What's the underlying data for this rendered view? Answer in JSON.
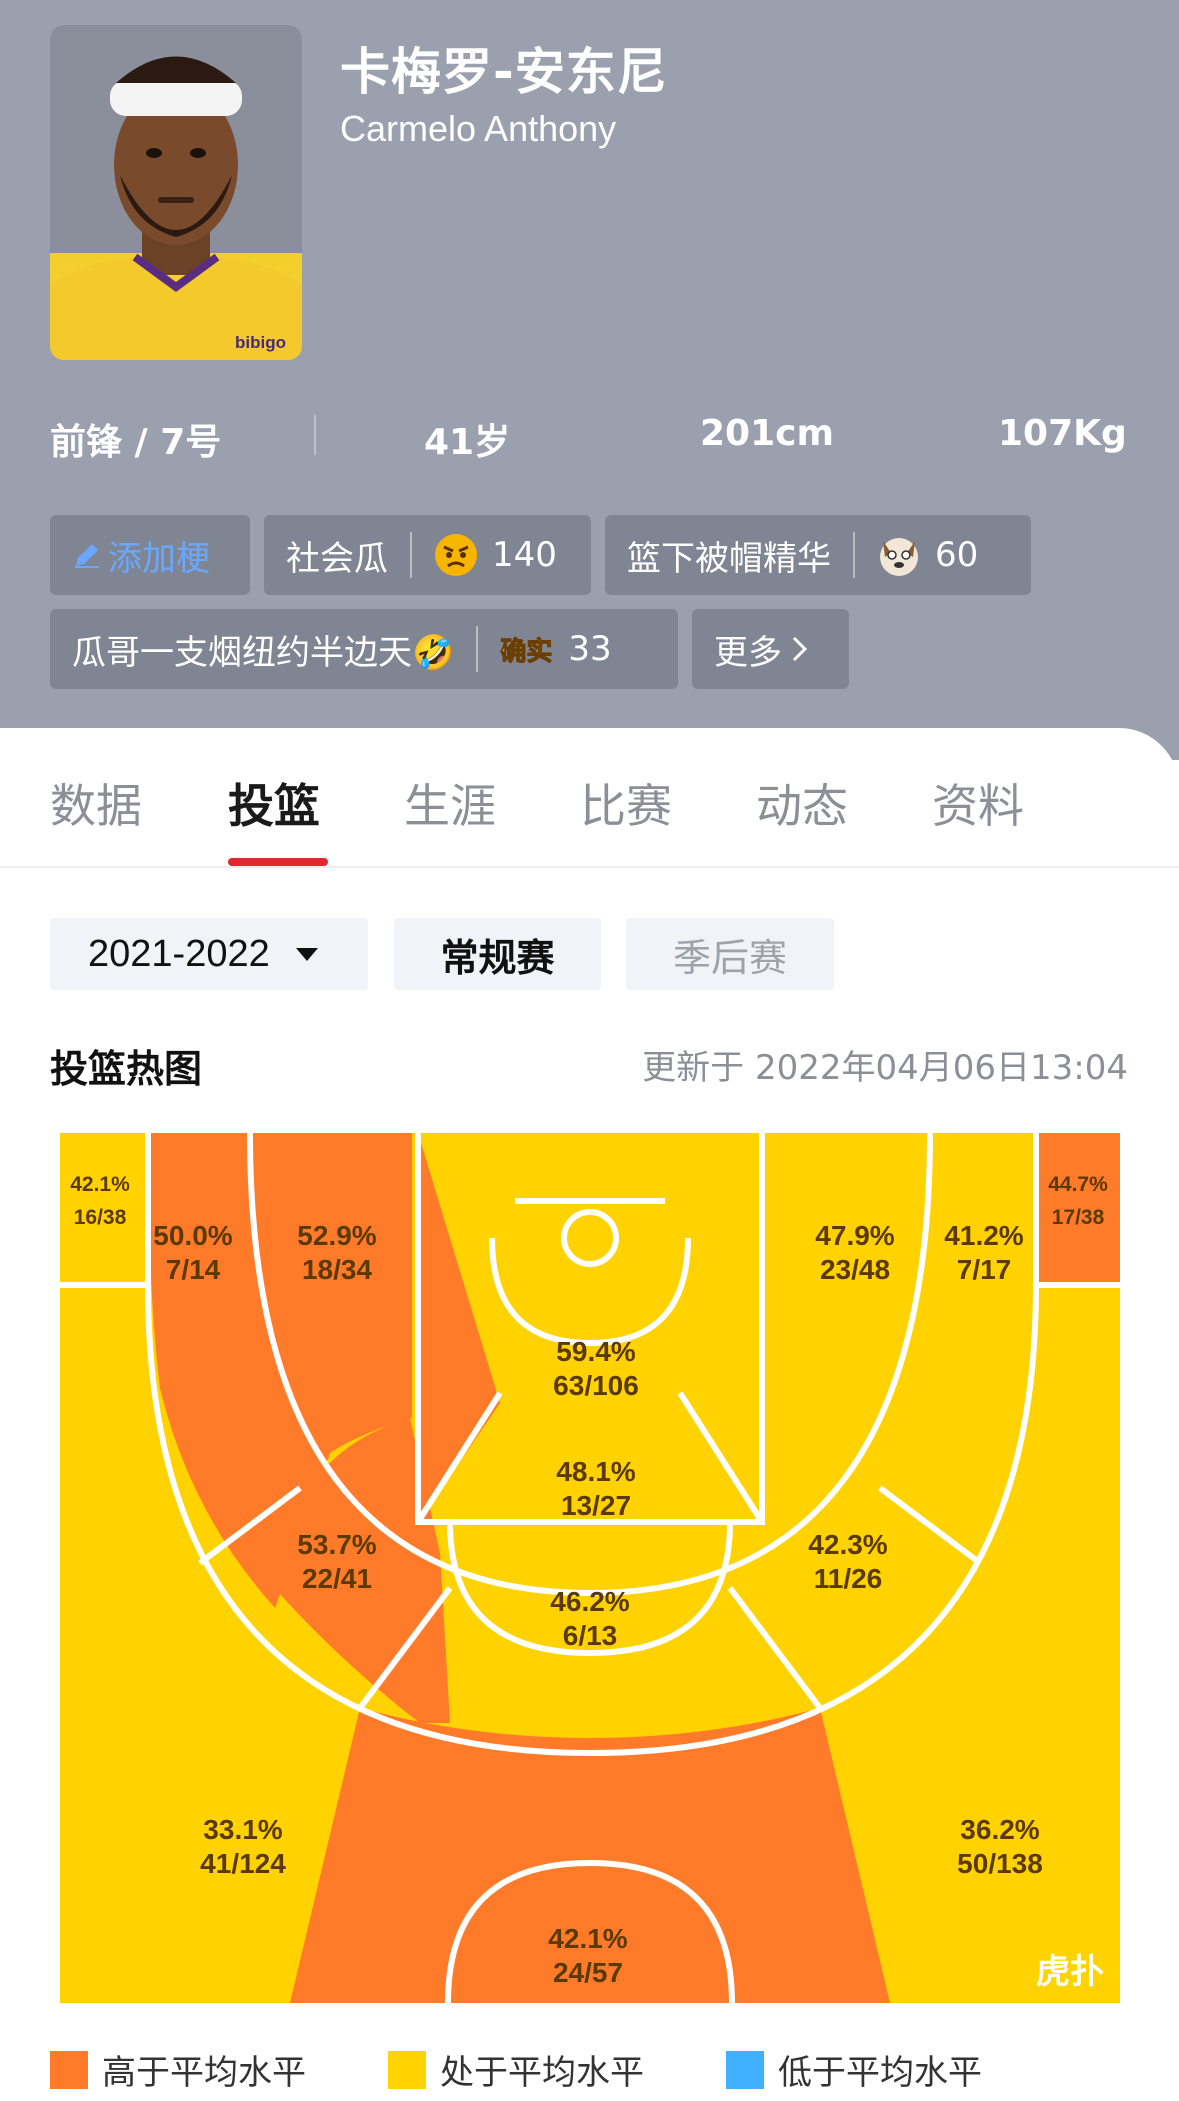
{
  "player": {
    "name_cn": "卡梅罗-安东尼",
    "name_en": "Carmelo Anthony",
    "jersey_text": "bibigo",
    "position_number": "前锋 / 7号",
    "age": "41岁",
    "height": "201cm",
    "weight": "107Kg"
  },
  "tags": {
    "add_label": "添加梗",
    "items": [
      {
        "label": "社会瓜",
        "count": "140",
        "icon": "angry-face-icon"
      },
      {
        "label": "篮下被帽精华",
        "count": "60",
        "icon": "dog-face-icon"
      },
      {
        "label": "瓜哥一支烟纽约半边天🤣",
        "badge": "确实",
        "count": "33"
      }
    ],
    "more_label": "更多"
  },
  "tabs": [
    {
      "label": "数据",
      "active": false
    },
    {
      "label": "投篮",
      "active": true
    },
    {
      "label": "生涯",
      "active": false
    },
    {
      "label": "比赛",
      "active": false
    },
    {
      "label": "动态",
      "active": false
    },
    {
      "label": "资料",
      "active": false
    }
  ],
  "filters": {
    "season": "2021-2022",
    "regular_label": "常规赛",
    "playoff_label": "季后赛"
  },
  "heatmap": {
    "title": "投篮热图",
    "updated": "更新于 2022年04月06日13:04",
    "watermark": "虎扑",
    "colors": {
      "above": "#ff7a29",
      "average": "#ffd200",
      "below": "#3fb1ff"
    },
    "zones": [
      {
        "id": "left-corner-three",
        "pct": "42.1%",
        "made_att": "16/38",
        "level": "average"
      },
      {
        "id": "left-baseline-long-two",
        "pct": "50.0%",
        "made_att": "7/14",
        "level": "above"
      },
      {
        "id": "left-short-baseline-two",
        "pct": "52.9%",
        "made_att": "18/34",
        "level": "above"
      },
      {
        "id": "restricted-area",
        "pct": "59.4%",
        "made_att": "63/106",
        "level": "average"
      },
      {
        "id": "right-short-baseline-two",
        "pct": "47.9%",
        "made_att": "23/48",
        "level": "average"
      },
      {
        "id": "right-baseline-long-two",
        "pct": "41.2%",
        "made_att": "7/17",
        "level": "average"
      },
      {
        "id": "right-corner-three",
        "pct": "44.7%",
        "made_att": "17/38",
        "level": "above"
      },
      {
        "id": "paint-non-ra",
        "pct": "48.1%",
        "made_att": "13/27",
        "level": "average"
      },
      {
        "id": "left-elbow-two",
        "pct": "53.7%",
        "made_att": "22/41",
        "level": "above"
      },
      {
        "id": "right-elbow-two",
        "pct": "42.3%",
        "made_att": "11/26",
        "level": "average"
      },
      {
        "id": "top-key-two",
        "pct": "46.2%",
        "made_att": "6/13",
        "level": "average"
      },
      {
        "id": "left-wing-three",
        "pct": "33.1%",
        "made_att": "41/124",
        "level": "average"
      },
      {
        "id": "right-wing-three",
        "pct": "36.2%",
        "made_att": "50/138",
        "level": "average"
      },
      {
        "id": "top-three",
        "pct": "42.1%",
        "made_att": "24/57",
        "level": "above"
      }
    ]
  },
  "legend": [
    {
      "label": "高于平均水平",
      "color": "#ff7a29"
    },
    {
      "label": "处于平均水平",
      "color": "#ffd200"
    },
    {
      "label": "低于平均水平",
      "color": "#3fb1ff"
    }
  ]
}
